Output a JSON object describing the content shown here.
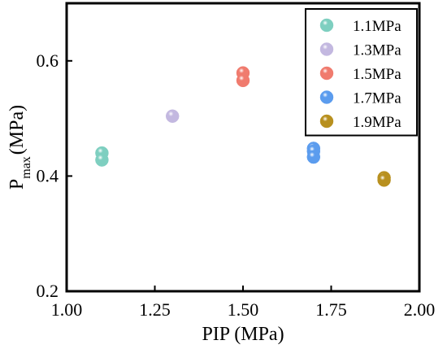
{
  "chart_data": {
    "type": "scatter",
    "xlabel": "PIP (MPa)",
    "ylabel": {
      "main": "P",
      "sub": "max",
      "unit": "(MPa)"
    },
    "xlim": [
      1.0,
      2.0
    ],
    "ylim": [
      0.2,
      0.7
    ],
    "xticks": [
      {
        "value": 1.0,
        "label": "1.00"
      },
      {
        "value": 1.25,
        "label": "1.25"
      },
      {
        "value": 1.5,
        "label": "1.50"
      },
      {
        "value": 1.75,
        "label": "1.75"
      },
      {
        "value": 2.0,
        "label": "2.00"
      }
    ],
    "yticks": [
      {
        "value": 0.2,
        "label": "0.2"
      },
      {
        "value": 0.4,
        "label": "0.4"
      },
      {
        "value": 0.6,
        "label": "0.6"
      }
    ],
    "grid": false,
    "legend_position": "top-right",
    "series": [
      {
        "name": "1.1MPa",
        "color": "#7ecfc0",
        "points": [
          {
            "x": 1.1,
            "y": 0.44
          },
          {
            "x": 1.1,
            "y": 0.428
          }
        ]
      },
      {
        "name": "1.3MPa",
        "color": "#c3b8e0",
        "points": [
          {
            "x": 1.3,
            "y": 0.504
          }
        ]
      },
      {
        "name": "1.5MPa",
        "color": "#f07b6e",
        "points": [
          {
            "x": 1.5,
            "y": 0.579
          },
          {
            "x": 1.5,
            "y": 0.566
          }
        ]
      },
      {
        "name": "1.7MPa",
        "color": "#5b9cee",
        "points": [
          {
            "x": 1.7,
            "y": 0.448
          },
          {
            "x": 1.7,
            "y": 0.443
          },
          {
            "x": 1.7,
            "y": 0.433
          }
        ]
      },
      {
        "name": "1.9MPa",
        "color": "#b8901f",
        "points": [
          {
            "x": 1.9,
            "y": 0.397
          },
          {
            "x": 1.9,
            "y": 0.393
          }
        ]
      }
    ]
  }
}
